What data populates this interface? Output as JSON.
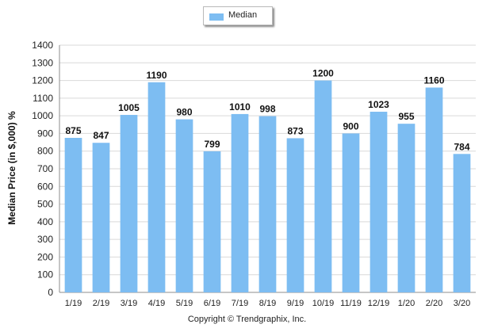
{
  "chart_data": {
    "type": "bar",
    "categories": [
      "1/19",
      "2/19",
      "3/19",
      "4/19",
      "5/19",
      "6/19",
      "7/19",
      "8/19",
      "9/19",
      "10/19",
      "11/19",
      "12/19",
      "1/20",
      "2/20",
      "3/20"
    ],
    "series": [
      {
        "name": "Median",
        "values": [
          875,
          847,
          1005,
          1190,
          980,
          799,
          1010,
          998,
          873,
          1200,
          900,
          1023,
          955,
          1160,
          784
        ]
      }
    ],
    "ylabel": "Median Price (in $,000) %",
    "ylim": [
      0,
      1400
    ],
    "yticks": [
      0,
      100,
      200,
      300,
      400,
      500,
      600,
      700,
      800,
      900,
      1000,
      1100,
      1200,
      1300,
      1400
    ],
    "grid": true,
    "legend_position": "top-center",
    "colors": {
      "bar": "#7dbdf2",
      "grid": "#d9d9d9",
      "axis": "#8c8c8c"
    }
  },
  "legend": {
    "label": "Median"
  },
  "footer": {
    "copyright": "Copyright © Trendgraphix, Inc."
  }
}
